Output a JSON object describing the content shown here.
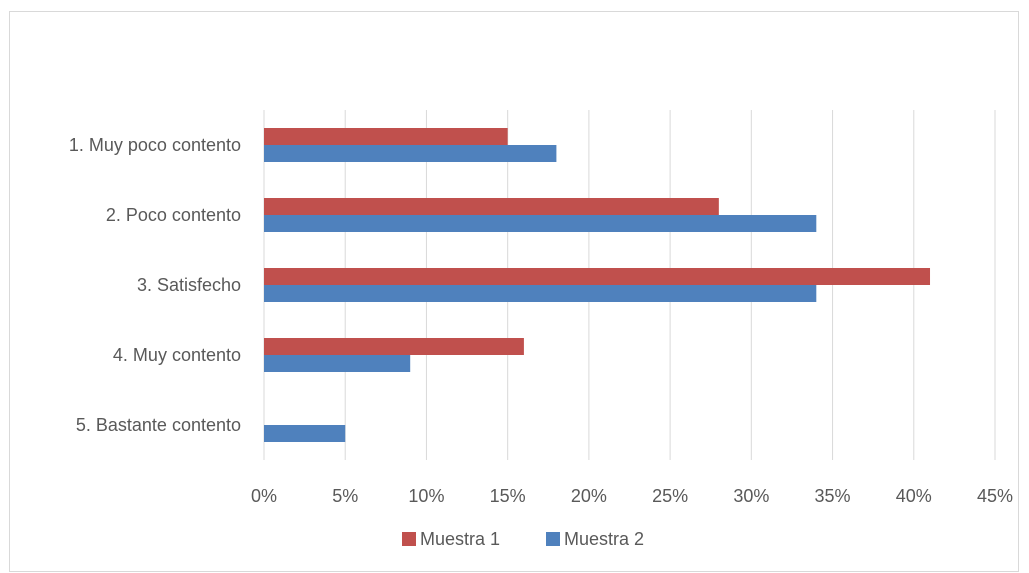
{
  "chart_data": {
    "type": "bar",
    "orientation": "horizontal",
    "categories": [
      "1. Muy poco contento",
      "2. Poco contento",
      "3. Satisfecho",
      "4. Muy contento",
      "5. Bastante contento"
    ],
    "series": [
      {
        "name": "Muestra 1",
        "color": "#c0504d",
        "values": [
          15,
          28,
          41,
          16,
          0
        ]
      },
      {
        "name": "Muestra 2",
        "color": "#4f81bd",
        "values": [
          18,
          34,
          34,
          9,
          5
        ]
      }
    ],
    "xlim": [
      0,
      45
    ],
    "x_ticks": [
      "0%",
      "5%",
      "10%",
      "15%",
      "20%",
      "25%",
      "30%",
      "35%",
      "40%",
      "45%"
    ],
    "title": "",
    "xlabel": "",
    "ylabel": "",
    "grid": "vertical",
    "legend_position": "bottom",
    "gridline_color": "#d9d9d9"
  }
}
